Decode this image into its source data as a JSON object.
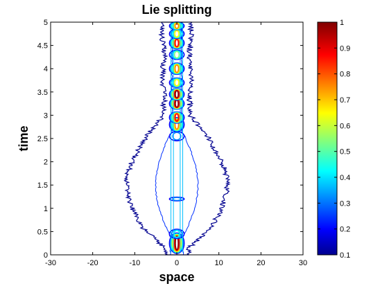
{
  "chart_data": {
    "type": "heatmap",
    "title": "Lie splitting",
    "xlabel": "space",
    "ylabel": "time",
    "xlim": [
      -30,
      30
    ],
    "ylim": [
      0,
      5
    ],
    "xticks": [
      "-30",
      "-20",
      "-10",
      "0",
      "10",
      "20",
      "30"
    ],
    "yticks": [
      "0",
      "0.5",
      "1",
      "1.5",
      "2",
      "2.5",
      "3",
      "3.5",
      "4",
      "4.5",
      "5"
    ],
    "colorbar": {
      "range": [
        0.1,
        1
      ],
      "colormap": "jet",
      "ticks": [
        "0.1",
        "0.2",
        "0.3",
        "0.4",
        "0.5",
        "0.6",
        "0.7",
        "0.8",
        "0.9",
        "1"
      ]
    },
    "grid": false,
    "description_series": [
      {
        "name": "",
        "points": [
          {
            "x": 0,
            "y": 0.25,
            "value": 1.0
          },
          {
            "x": 0,
            "y": 2.9,
            "value": 0.95
          },
          {
            "x": 0,
            "y": 3.4,
            "value": 1.0
          },
          {
            "x": 0,
            "y": 4.5,
            "value": 0.9
          },
          {
            "x": 0,
            "y": 4.0,
            "value": 0.75
          }
        ]
      }
    ]
  }
}
